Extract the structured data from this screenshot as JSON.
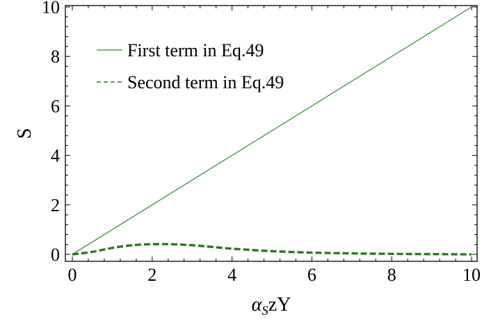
{
  "chart_data": {
    "type": "line",
    "xlabel_greek": "α",
    "xlabel_sub": "S",
    "xlabel_rest": "zY",
    "ylabel": "S",
    "xlim": [
      0,
      10
    ],
    "ylim": [
      0,
      10
    ],
    "x_ticks": [
      0,
      2,
      4,
      6,
      8,
      10
    ],
    "y_ticks": [
      0,
      2,
      4,
      6,
      8,
      10
    ],
    "legend_position": "top-left",
    "series": [
      {
        "name": "First term in Eq.49",
        "style": "solid",
        "color": "#2e8b2e",
        "x": [
          0,
          10
        ],
        "y": [
          0,
          10
        ]
      },
      {
        "name": "Second term in Eq.49",
        "style": "dashed",
        "color": "#2a7a1e",
        "x": [
          0,
          0.5,
          1,
          1.5,
          2,
          2.5,
          3,
          3.5,
          4,
          5,
          6,
          7,
          8,
          9,
          10
        ],
        "y": [
          0,
          0.1,
          0.26,
          0.37,
          0.41,
          0.41,
          0.37,
          0.3,
          0.23,
          0.13,
          0.07,
          0.04,
          0.02,
          0.01,
          0.0
        ]
      }
    ]
  }
}
